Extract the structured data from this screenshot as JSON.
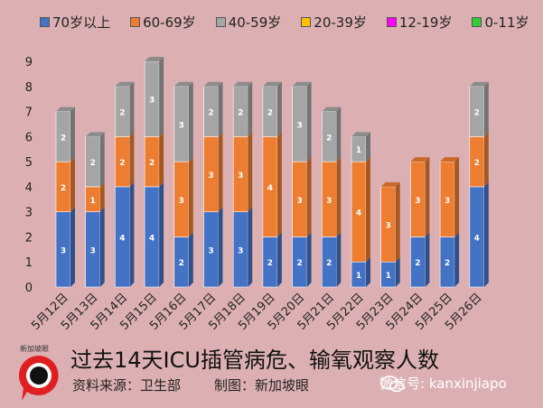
{
  "chart_data": {
    "type": "bar",
    "stacked": true,
    "title": "过去14天ICU插管病危、输氧观察人数",
    "categories": [
      "5月12日",
      "5月13日",
      "5月14日",
      "5月15日",
      "5月16日",
      "5月17日",
      "5月18日",
      "5月19日",
      "5月20日",
      "5月21日",
      "5月22日",
      "5月23日",
      "5月24日",
      "5月25日",
      "5月26日"
    ],
    "series": [
      {
        "name": "70岁以上",
        "color": "#4472c4",
        "values": [
          3,
          3,
          4,
          4,
          2,
          3,
          3,
          2,
          2,
          2,
          1,
          1,
          2,
          2,
          4
        ]
      },
      {
        "name": "60-69岁",
        "color": "#ed7d31",
        "values": [
          2,
          1,
          2,
          2,
          3,
          3,
          3,
          4,
          3,
          3,
          4,
          3,
          3,
          3,
          2
        ]
      },
      {
        "name": "40-59岁",
        "color": "#a5a5a5",
        "values": [
          2,
          2,
          2,
          3,
          3,
          2,
          2,
          2,
          3,
          2,
          1,
          0,
          0,
          0,
          2
        ]
      },
      {
        "name": "20-39岁",
        "color": "#ffc000",
        "values": [
          0,
          0,
          0,
          0,
          0,
          0,
          0,
          0,
          0,
          0,
          0,
          0,
          0,
          0,
          0
        ]
      },
      {
        "name": "12-19岁",
        "color": "#ff00ff",
        "values": [
          0,
          0,
          0,
          0,
          0,
          0,
          0,
          0,
          0,
          0,
          0,
          0,
          0,
          0,
          0
        ]
      },
      {
        "name": "0-11岁",
        "color": "#33cc33",
        "values": [
          0,
          0,
          0,
          0,
          0,
          0,
          0,
          0,
          0,
          0,
          0,
          0,
          0,
          0,
          0
        ]
      }
    ],
    "ylim": [
      0,
      9
    ],
    "yticks": [
      0,
      1,
      2,
      3,
      4,
      5,
      6,
      7,
      8,
      9
    ],
    "legend_position": "top",
    "grid": false
  },
  "footer": {
    "source": "资料来源：卫生部",
    "maker": "制图：新加坡眼",
    "wechat": "微信号: kanxinjiapo",
    "logo_text": "新加坡眼"
  }
}
